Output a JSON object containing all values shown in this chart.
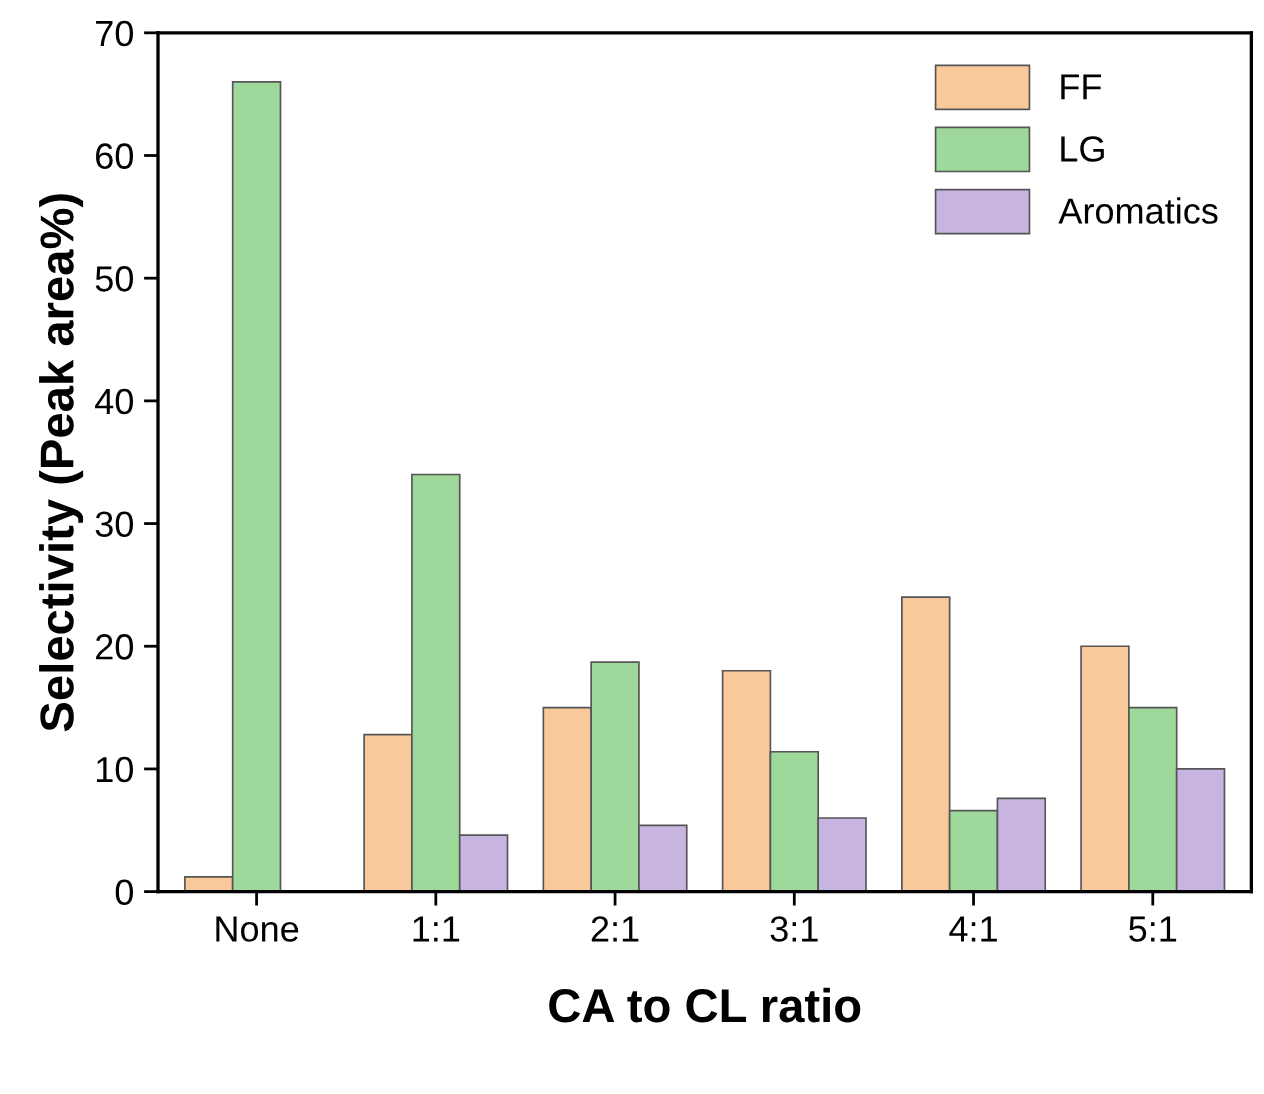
{
  "chart_data": {
    "type": "bar",
    "xlabel": "CA to CL ratio",
    "ylabel": "Selectivity (Peak area%)",
    "categories": [
      "None",
      "1:1",
      "2:1",
      "3:1",
      "4:1",
      "5:1"
    ],
    "series": [
      {
        "name": "FF",
        "color": "#f9c89b",
        "values": [
          1.2,
          12.8,
          15,
          18,
          24,
          20
        ]
      },
      {
        "name": "LG",
        "color": "#9ed89a",
        "values": [
          66,
          34,
          18.7,
          11.4,
          6.6,
          15
        ]
      },
      {
        "name": "Aromatics",
        "color": "#c8b4e0",
        "values": [
          null,
          4.6,
          5.4,
          6,
          7.6,
          10
        ]
      }
    ],
    "ylim": [
      0,
      70
    ],
    "yticks": [
      0,
      10,
      20,
      30,
      40,
      50,
      60,
      70
    ],
    "grid": false,
    "legend": "top right"
  }
}
